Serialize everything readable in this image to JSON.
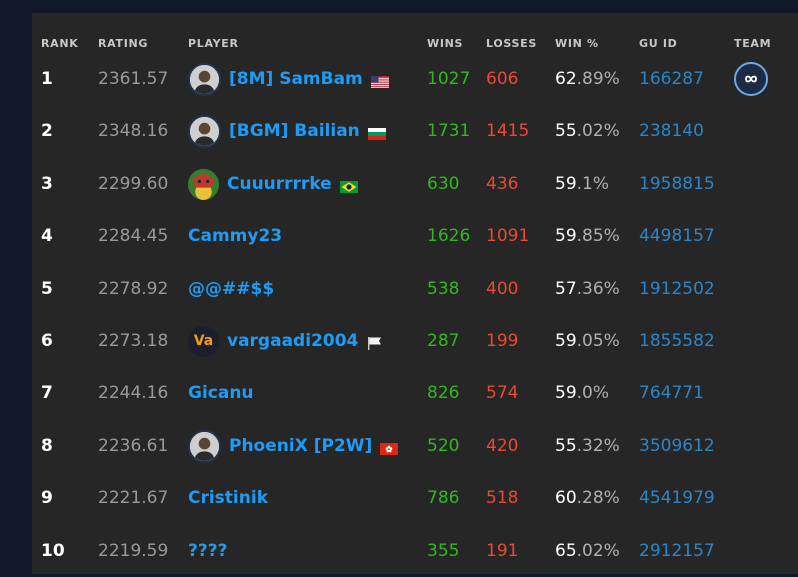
{
  "headers": {
    "rank": "RANK",
    "rating": "RATING",
    "player": "PLAYER",
    "wins": "WINS",
    "losses": "LOSSES",
    "winpct": "WIN %",
    "guid": "GU ID",
    "team": "TEAM"
  },
  "rows": [
    {
      "rank": "1",
      "rating": "2361.57",
      "name": "[8M] SamBam",
      "avatar": "photo-avatar",
      "flag": "us",
      "wins": "1027",
      "losses": "606",
      "pct_int": "62",
      "pct_dec": ".89%",
      "guid": "166287",
      "team": "infinity-team-icon"
    },
    {
      "rank": "2",
      "rating": "2348.16",
      "name": "[BGM] Bailian",
      "avatar": "photo-avatar",
      "flag": "bg",
      "wins": "1731",
      "losses": "1415",
      "pct_int": "55",
      "pct_dec": ".02%",
      "guid": "238140",
      "team": ""
    },
    {
      "rank": "3",
      "rating": "2299.60",
      "name": "Cuuurrrrke",
      "avatar": "art-avatar",
      "flag": "br",
      "wins": "630",
      "losses": "436",
      "pct_int": "59",
      "pct_dec": ".1%",
      "guid": "1958815",
      "team": ""
    },
    {
      "rank": "4",
      "rating": "2284.45",
      "name": "Cammy23",
      "avatar": "",
      "flag": "",
      "wins": "1626",
      "losses": "1091",
      "pct_int": "59",
      "pct_dec": ".85%",
      "guid": "4498157",
      "team": ""
    },
    {
      "rank": "5",
      "rating": "2278.92",
      "name": "@@##$$",
      "avatar": "",
      "flag": "",
      "wins": "538",
      "losses": "400",
      "pct_int": "57",
      "pct_dec": ".36%",
      "guid": "1912502",
      "team": ""
    },
    {
      "rank": "6",
      "rating": "2273.18",
      "name": "vargaadi2004",
      "avatar": "initials-avatar",
      "avatar_text": "Va",
      "flag": "white",
      "wins": "287",
      "losses": "199",
      "pct_int": "59",
      "pct_dec": ".05%",
      "guid": "1855582",
      "team": ""
    },
    {
      "rank": "7",
      "rating": "2244.16",
      "name": "Gicanu",
      "avatar": "",
      "flag": "",
      "wins": "826",
      "losses": "574",
      "pct_int": "59",
      "pct_dec": ".0%",
      "guid": "764771",
      "team": ""
    },
    {
      "rank": "8",
      "rating": "2236.61",
      "name": "PhoeniX [P2W]",
      "avatar": "photo-avatar",
      "flag": "hk",
      "wins": "520",
      "losses": "420",
      "pct_int": "55",
      "pct_dec": ".32%",
      "guid": "3509612",
      "team": ""
    },
    {
      "rank": "9",
      "rating": "2221.67",
      "name": "Cristinik",
      "avatar": "",
      "flag": "",
      "wins": "786",
      "losses": "518",
      "pct_int": "60",
      "pct_dec": ".28%",
      "guid": "4541979",
      "team": ""
    },
    {
      "rank": "10",
      "rating": "2219.59",
      "name": "????",
      "avatar": "",
      "flag": "",
      "wins": "355",
      "losses": "191",
      "pct_int": "65",
      "pct_dec": ".02%",
      "guid": "2912157",
      "team": ""
    }
  ],
  "colors": {
    "background": "#11182a",
    "panel": "#262626",
    "name": "#1e9bf5",
    "wins": "#31b820",
    "losses": "#e84a33",
    "guid": "#2b86c9"
  }
}
